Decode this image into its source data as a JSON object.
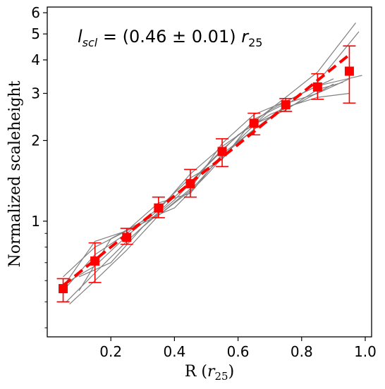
{
  "chart_data": {
    "type": "scatter",
    "title": "",
    "xlabel": "R (r25)",
    "ylabel": "Normalized scaleheight",
    "annotation": "l_scl = (0.46 ± 0.01) r25",
    "xlim": [
      0.0,
      1.02
    ],
    "ylim": [
      0.37,
      6.3
    ],
    "yscale": "log",
    "grid": false,
    "x_ticks": [
      0.2,
      0.4,
      0.6,
      0.8,
      1.0
    ],
    "x_tick_labels": [
      "0.2",
      "0.4",
      "0.6",
      "0.8",
      "1.0"
    ],
    "y_ticks": [
      1,
      2,
      3,
      4,
      5,
      6
    ],
    "y_tick_labels": [
      "1",
      "2",
      "3",
      "4",
      "5",
      "6"
    ],
    "series": [
      {
        "type": "errorbar-markers",
        "color": "#ff0000",
        "marker": "square",
        "x": [
          0.05,
          0.15,
          0.25,
          0.35,
          0.45,
          0.55,
          0.65,
          0.75,
          0.85,
          0.95
        ],
        "y": [
          0.56,
          0.71,
          0.87,
          1.12,
          1.38,
          1.82,
          2.32,
          2.72,
          3.17,
          3.63
        ],
        "yerr_low": [
          0.06,
          0.12,
          0.05,
          0.09,
          0.15,
          0.22,
          0.22,
          0.15,
          0.32,
          0.87
        ],
        "yerr_high": [
          0.05,
          0.12,
          0.07,
          0.11,
          0.18,
          0.21,
          0.21,
          0.15,
          0.38,
          0.88
        ]
      },
      {
        "type": "fit-line",
        "color": "#ff0000",
        "linestyle": "dashed",
        "x": [
          0.05,
          0.95
        ],
        "y": [
          0.575,
          4.18
        ]
      },
      {
        "type": "individual-profiles",
        "color": "#808080",
        "lines": [
          {
            "x": [
              0.06,
              0.15,
              0.25,
              0.35,
              0.45,
              0.55,
              0.65,
              0.75,
              0.85,
              0.97
            ],
            "y": [
              0.5,
              0.64,
              0.84,
              1.08,
              1.4,
              1.85,
              2.35,
              2.9,
              3.6,
              5.5
            ]
          },
          {
            "x": [
              0.07,
              0.15,
              0.25,
              0.35,
              0.45,
              0.55,
              0.65,
              0.75,
              0.85,
              0.98
            ],
            "y": [
              0.49,
              0.6,
              0.78,
              1.05,
              1.3,
              1.75,
              2.2,
              2.7,
              3.3,
              5.1
            ]
          },
          {
            "x": [
              0.05,
              0.15,
              0.25,
              0.35,
              0.45,
              0.55,
              0.65,
              0.75,
              0.85,
              0.95
            ],
            "y": [
              0.55,
              0.75,
              0.9,
              1.12,
              1.45,
              1.7,
              2.4,
              2.75,
              3.0,
              3.4
            ]
          },
          {
            "x": [
              0.05,
              0.15,
              0.25,
              0.35,
              0.45,
              0.55,
              0.65,
              0.75,
              0.85,
              0.99
            ],
            "y": [
              0.62,
              0.8,
              0.92,
              1.05,
              1.32,
              1.95,
              2.5,
              2.8,
              3.2,
              3.5
            ]
          },
          {
            "x": [
              0.05,
              0.15,
              0.25,
              0.35,
              0.45,
              0.55,
              0.65,
              0.75,
              0.85,
              0.93
            ],
            "y": [
              0.58,
              0.68,
              0.88,
              1.1,
              1.5,
              1.9,
              2.3,
              2.6,
              3.1,
              3.3
            ]
          },
          {
            "x": [
              0.05,
              0.15,
              0.25,
              0.35,
              0.45,
              0.55,
              0.65,
              0.75,
              0.85,
              0.95
            ],
            "y": [
              0.57,
              0.84,
              0.92,
              1.17,
              1.27,
              1.78,
              2.2,
              2.66,
              2.9,
              3.0
            ]
          },
          {
            "x": [
              0.1,
              0.2,
              0.3,
              0.4,
              0.5,
              0.6,
              0.7,
              0.8,
              0.9
            ],
            "y": [
              0.62,
              0.7,
              0.95,
              1.2,
              1.6,
              2.1,
              2.5,
              2.8,
              3.25
            ]
          },
          {
            "x": [
              0.1,
              0.2,
              0.3,
              0.4,
              0.5,
              0.6,
              0.7,
              0.8,
              0.9
            ],
            "y": [
              0.55,
              0.86,
              1.0,
              1.12,
              1.48,
              2.0,
              2.6,
              3.0,
              3.4
            ]
          }
        ]
      }
    ]
  }
}
